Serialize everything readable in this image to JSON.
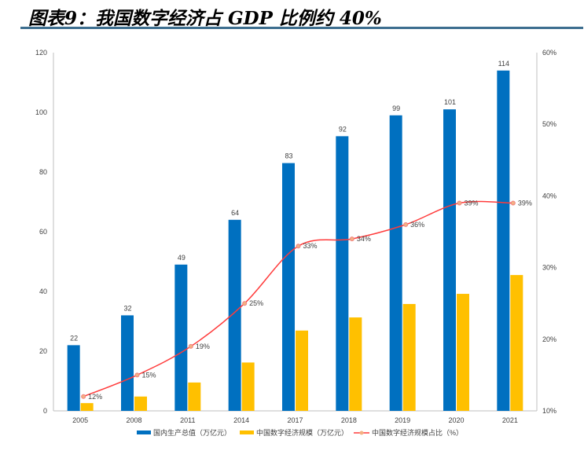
{
  "title": "图表9：我国数字经济占 GDP 比例约 40%",
  "chart_data": {
    "type": "bar+line",
    "categories": [
      "2005",
      "2008",
      "2011",
      "2014",
      "2017",
      "2018",
      "2019",
      "2020",
      "2021"
    ],
    "series": [
      {
        "name": "国内生产总值（万亿元）",
        "type": "bar",
        "axis": "left",
        "color": "#0070c0",
        "values": [
          22,
          32,
          49,
          64,
          83,
          92,
          99,
          101,
          114
        ],
        "labels": [
          "22",
          "32",
          "49",
          "64",
          "83",
          "92",
          "99",
          "101",
          "114"
        ]
      },
      {
        "name": "中国数字经济规模（万亿元）",
        "type": "bar",
        "axis": "left",
        "color": "#ffc000",
        "values": [
          2.6,
          4.8,
          9.5,
          16.2,
          26.9,
          31.3,
          35.8,
          39.2,
          45.5
        ]
      },
      {
        "name": "中国数字经济规模占比（%）",
        "type": "line",
        "axis": "right",
        "color": "#ff3b3b",
        "values": [
          12,
          15,
          19,
          25,
          33,
          34,
          36,
          39,
          39
        ],
        "labels": [
          "12%",
          "15%",
          "19%",
          "25%",
          "33%",
          "34%",
          "36%",
          "39%",
          "39%"
        ]
      }
    ],
    "ylim": [
      0,
      120
    ],
    "yticks": [
      "0",
      "20",
      "40",
      "60",
      "80",
      "100",
      "120"
    ],
    "y2lim": [
      10,
      60
    ],
    "y2ticks": [
      "10%",
      "20%",
      "30%",
      "40%",
      "50%",
      "60%"
    ],
    "grid": false,
    "legend": "bottom"
  }
}
